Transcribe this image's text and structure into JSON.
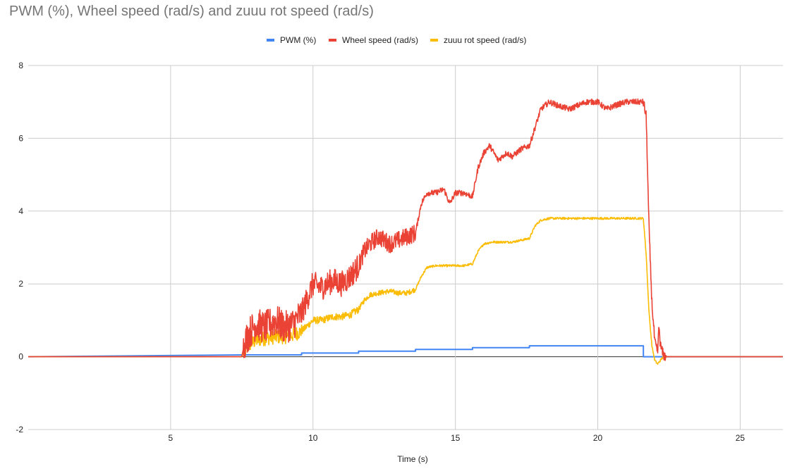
{
  "chart_data": {
    "type": "line",
    "title": "PWM (%), Wheel speed (rad/s) and zuuu rot speed (rad/s)",
    "xlabel": "Time (s)",
    "ylabel": "",
    "xlim": [
      0,
      26.5
    ],
    "ylim": [
      -2,
      8
    ],
    "x_ticks": [
      5,
      10,
      15,
      20,
      25
    ],
    "y_ticks": [
      -2,
      0,
      2,
      4,
      6,
      8
    ],
    "grid": true,
    "legend_position": "top-center",
    "series": [
      {
        "name": "PWM (%)",
        "color": "#4285f4",
        "x": [
          0,
          7.6,
          9.6,
          9.6,
          11.6,
          11.6,
          13.6,
          13.6,
          15.6,
          15.6,
          17.6,
          17.6,
          21.6,
          21.6,
          26.5
        ],
        "y": [
          0,
          0.05,
          0.05,
          0.1,
          0.1,
          0.15,
          0.15,
          0.2,
          0.2,
          0.25,
          0.25,
          0.3,
          0.3,
          0,
          0
        ]
      },
      {
        "name": "Wheel speed (rad/s)",
        "color": "#ea4335",
        "x": [
          0,
          7.5,
          7.6,
          7.8,
          8.0,
          8.3,
          8.7,
          9.0,
          9.3,
          9.6,
          9.8,
          10.0,
          10.3,
          10.7,
          11.0,
          11.3,
          11.6,
          11.8,
          12.0,
          12.3,
          12.7,
          13.0,
          13.3,
          13.6,
          13.8,
          14.0,
          14.3,
          14.6,
          14.8,
          15.0,
          15.3,
          15.6,
          15.8,
          16.0,
          16.2,
          16.5,
          16.8,
          17.0,
          17.3,
          17.6,
          17.8,
          18.0,
          18.3,
          18.6,
          19.0,
          19.3,
          19.6,
          20.0,
          20.3,
          20.6,
          21.0,
          21.3,
          21.6,
          21.7,
          21.8,
          21.9,
          22.0,
          22.1,
          22.15,
          22.2,
          22.3,
          22.4,
          22.5,
          26.5
        ],
        "y": [
          0,
          0,
          0.4,
          0.7,
          0.9,
          0.8,
          1.0,
          0.8,
          0.9,
          1.2,
          1.6,
          2.0,
          1.9,
          2.1,
          2.0,
          2.2,
          2.5,
          2.9,
          3.1,
          3.3,
          3.1,
          3.2,
          3.3,
          3.4,
          4.2,
          4.5,
          4.5,
          4.6,
          4.2,
          4.5,
          4.5,
          4.4,
          5.2,
          5.6,
          5.8,
          5.4,
          5.6,
          5.5,
          5.7,
          5.8,
          6.3,
          6.8,
          7.0,
          6.9,
          6.8,
          6.9,
          7.0,
          7.0,
          6.8,
          6.9,
          7.0,
          7.0,
          7.0,
          6.6,
          3.5,
          1.5,
          0.4,
          0.1,
          0.85,
          0.3,
          0.05,
          0,
          0,
          0
        ]
      },
      {
        "name": "zuuu rot speed (rad/s)",
        "color": "#fbbc04",
        "x": [
          0,
          7.5,
          7.7,
          8.0,
          8.3,
          8.7,
          9.0,
          9.3,
          9.6,
          9.8,
          10.0,
          10.3,
          10.7,
          11.0,
          11.3,
          11.6,
          11.8,
          12.0,
          12.3,
          12.7,
          13.0,
          13.3,
          13.6,
          13.8,
          14.0,
          14.3,
          14.6,
          15.0,
          15.3,
          15.6,
          15.8,
          16.0,
          16.3,
          16.6,
          17.0,
          17.3,
          17.6,
          17.8,
          18.0,
          18.3,
          18.6,
          19.0,
          19.5,
          20.0,
          20.5,
          21.0,
          21.5,
          21.6,
          21.7,
          21.8,
          21.9,
          22.0,
          22.1,
          22.2,
          22.3,
          22.4,
          22.5,
          26.5
        ],
        "y": [
          0,
          0,
          0.3,
          0.45,
          0.5,
          0.55,
          0.55,
          0.6,
          0.7,
          0.85,
          1.0,
          1.0,
          1.1,
          1.1,
          1.15,
          1.3,
          1.55,
          1.7,
          1.75,
          1.8,
          1.75,
          1.75,
          1.85,
          2.2,
          2.45,
          2.5,
          2.5,
          2.5,
          2.5,
          2.55,
          2.9,
          3.1,
          3.15,
          3.15,
          3.15,
          3.2,
          3.25,
          3.6,
          3.75,
          3.8,
          3.8,
          3.8,
          3.8,
          3.8,
          3.8,
          3.8,
          3.8,
          3.8,
          2.8,
          1.2,
          0.3,
          -0.1,
          -0.2,
          -0.1,
          0,
          0,
          0,
          0
        ]
      }
    ]
  }
}
